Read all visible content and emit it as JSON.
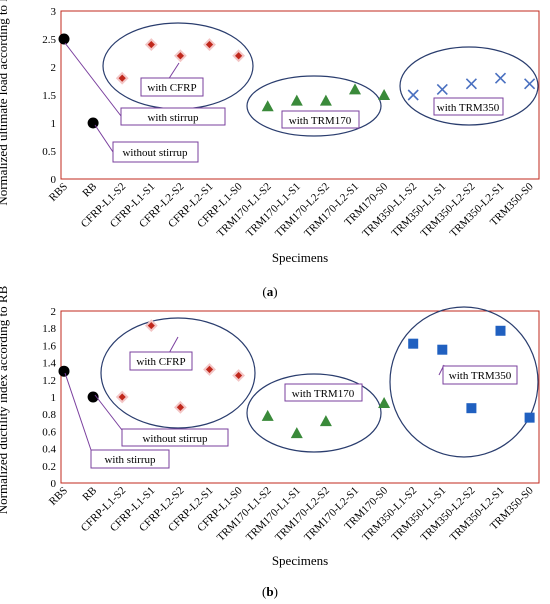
{
  "chart_data": [
    {
      "type": "scatter",
      "panel_label": "a",
      "xlabel": "Specimens",
      "ylabel": "Normalized ultimate load  according to RB",
      "ylim": [
        0,
        3
      ],
      "yticks": [
        "0",
        "0.5",
        "1",
        "1.5",
        "2",
        "2.5",
        "3"
      ],
      "grid": false,
      "categories": [
        "RBS",
        "RB",
        "CFRP-L1-S2",
        "CFRP-L1-S1",
        "CFRP-L2-S2",
        "CFRP-L2-S1",
        "CFRP-L1-S0",
        "TRM170-L1-S2",
        "TRM170-L1-S1",
        "TRM170-L2-S2",
        "TRM170-L2-S1",
        "TRM170-S0",
        "TRM350-L1-S2",
        "TRM350-L1-S1",
        "TRM350-L2-S2",
        "TRM350-L2-S1",
        "TRM350-S0"
      ],
      "series": [
        {
          "marker": "circle",
          "color": "#000000",
          "points": [
            {
              "x": "RBS",
              "y": 2.5
            },
            {
              "x": "RB",
              "y": 1.0
            }
          ]
        },
        {
          "marker": "diamond",
          "color": "#c0281c",
          "points": [
            {
              "x": "CFRP-L1-S2",
              "y": 1.8
            },
            {
              "x": "CFRP-L1-S1",
              "y": 2.4
            },
            {
              "x": "CFRP-L2-S2",
              "y": 2.2
            },
            {
              "x": "CFRP-L2-S1",
              "y": 2.4
            },
            {
              "x": "CFRP-L1-S0",
              "y": 2.2
            }
          ]
        },
        {
          "marker": "triangle",
          "color": "#3a8a3a",
          "points": [
            {
              "x": "TRM170-L1-S2",
              "y": 1.3
            },
            {
              "x": "TRM170-L1-S1",
              "y": 1.4
            },
            {
              "x": "TRM170-L2-S2",
              "y": 1.4
            },
            {
              "x": "TRM170-L2-S1",
              "y": 1.6
            },
            {
              "x": "TRM170-S0",
              "y": 1.5
            }
          ]
        },
        {
          "marker": "x",
          "color": "#4a70c0",
          "points": [
            {
              "x": "TRM350-L1-S2",
              "y": 1.5
            },
            {
              "x": "TRM350-L1-S1",
              "y": 1.6
            },
            {
              "x": "TRM350-L2-S2",
              "y": 1.7
            },
            {
              "x": "TRM350-L2-S1",
              "y": 1.8
            },
            {
              "x": "TRM350-S0",
              "y": 1.7
            }
          ]
        }
      ],
      "annotations": [
        "with CFRP",
        "with stirrup",
        "without stirrup",
        "with TRM170",
        "with TRM350"
      ]
    },
    {
      "type": "scatter",
      "panel_label": "b",
      "xlabel": "Specimens",
      "ylabel": "Normalized ductility index according to RB",
      "ylim": [
        0,
        2
      ],
      "yticks": [
        "0",
        "0.2",
        "0.4",
        "0.6",
        "0.8",
        "1",
        "1.2",
        "1.4",
        "1.6",
        "1.8",
        "2"
      ],
      "grid": false,
      "categories": [
        "RBS",
        "RB",
        "CFRP-L1-S2",
        "CFRP-L1-S1",
        "CFRP-L2-S2",
        "CFRP-L2-S1",
        "CFRP-L1-S0",
        "TRM170-L1-S2",
        "TRM170-L1-S1",
        "TRM170-L2-S2",
        "TRM170-L2-S1",
        "TRM170-S0",
        "TRM350-L1-S2",
        "TRM350-L1-S1",
        "TRM350-L2-S2",
        "TRM350-L2-S1",
        "TRM350-S0"
      ],
      "series": [
        {
          "marker": "circle",
          "color": "#000000",
          "points": [
            {
              "x": "RBS",
              "y": 1.3
            },
            {
              "x": "RB",
              "y": 1.0
            }
          ]
        },
        {
          "marker": "diamond",
          "color": "#c0281c",
          "points": [
            {
              "x": "CFRP-L1-S2",
              "y": 1.0
            },
            {
              "x": "CFRP-L1-S1",
              "y": 1.83
            },
            {
              "x": "CFRP-L2-S2",
              "y": 0.88
            },
            {
              "x": "CFRP-L2-S1",
              "y": 1.32
            },
            {
              "x": "CFRP-L1-S0",
              "y": 1.25
            }
          ]
        },
        {
          "marker": "triangle",
          "color": "#3a8a3a",
          "points": [
            {
              "x": "TRM170-L1-S2",
              "y": 0.78
            },
            {
              "x": "TRM170-L1-S1",
              "y": 0.58
            },
            {
              "x": "TRM170-L2-S2",
              "y": 0.72
            },
            {
              "x": "TRM170-S0",
              "y": 0.93
            }
          ]
        },
        {
          "marker": "square",
          "color": "#2060c0",
          "points": [
            {
              "x": "TRM350-L1-S2",
              "y": 1.62
            },
            {
              "x": "TRM350-L1-S1",
              "y": 1.55
            },
            {
              "x": "TRM350-L2-S2",
              "y": 0.87
            },
            {
              "x": "TRM350-L2-S1",
              "y": 1.77
            },
            {
              "x": "TRM350-S0",
              "y": 0.76
            }
          ]
        }
      ],
      "annotations": [
        "with CFRP",
        "without stirrup",
        "with stirrup",
        "with TRM170",
        "with TRM350"
      ]
    }
  ]
}
